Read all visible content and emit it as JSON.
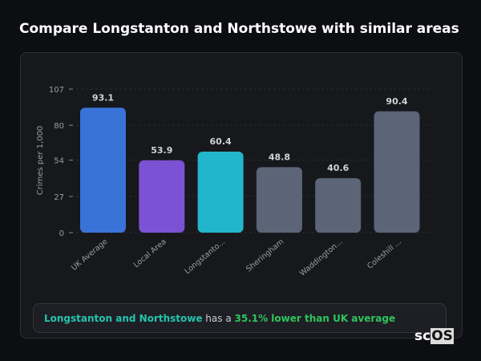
{
  "title": "Compare Longstanton and Northstowe with similar areas",
  "chart_data": {
    "type": "bar",
    "ylabel": "Crimes per 1,000",
    "ylim": [
      0,
      107
    ],
    "yticks": [
      0,
      27,
      54,
      80,
      107
    ],
    "grid": true,
    "categories": [
      "UK Average",
      "Local Area",
      "Longstanto...",
      "Sheringham",
      "Waddington...",
      "Coleshill ..."
    ],
    "values": [
      93.1,
      53.9,
      60.4,
      48.8,
      40.6,
      90.4
    ],
    "value_labels": [
      "93.1",
      "53.9",
      "60.4",
      "48.8",
      "40.6",
      "90.4"
    ],
    "colors": [
      "#3a73d8",
      "#7b52d4",
      "#22b6cc",
      "#5b6577",
      "#5b6577",
      "#5b6577"
    ]
  },
  "summary": {
    "area": "Longstanton and Northstowe",
    "middle": " has a ",
    "stat": "35.1% lower than UK average"
  },
  "logo": {
    "a": "sc",
    "b": "OS"
  }
}
